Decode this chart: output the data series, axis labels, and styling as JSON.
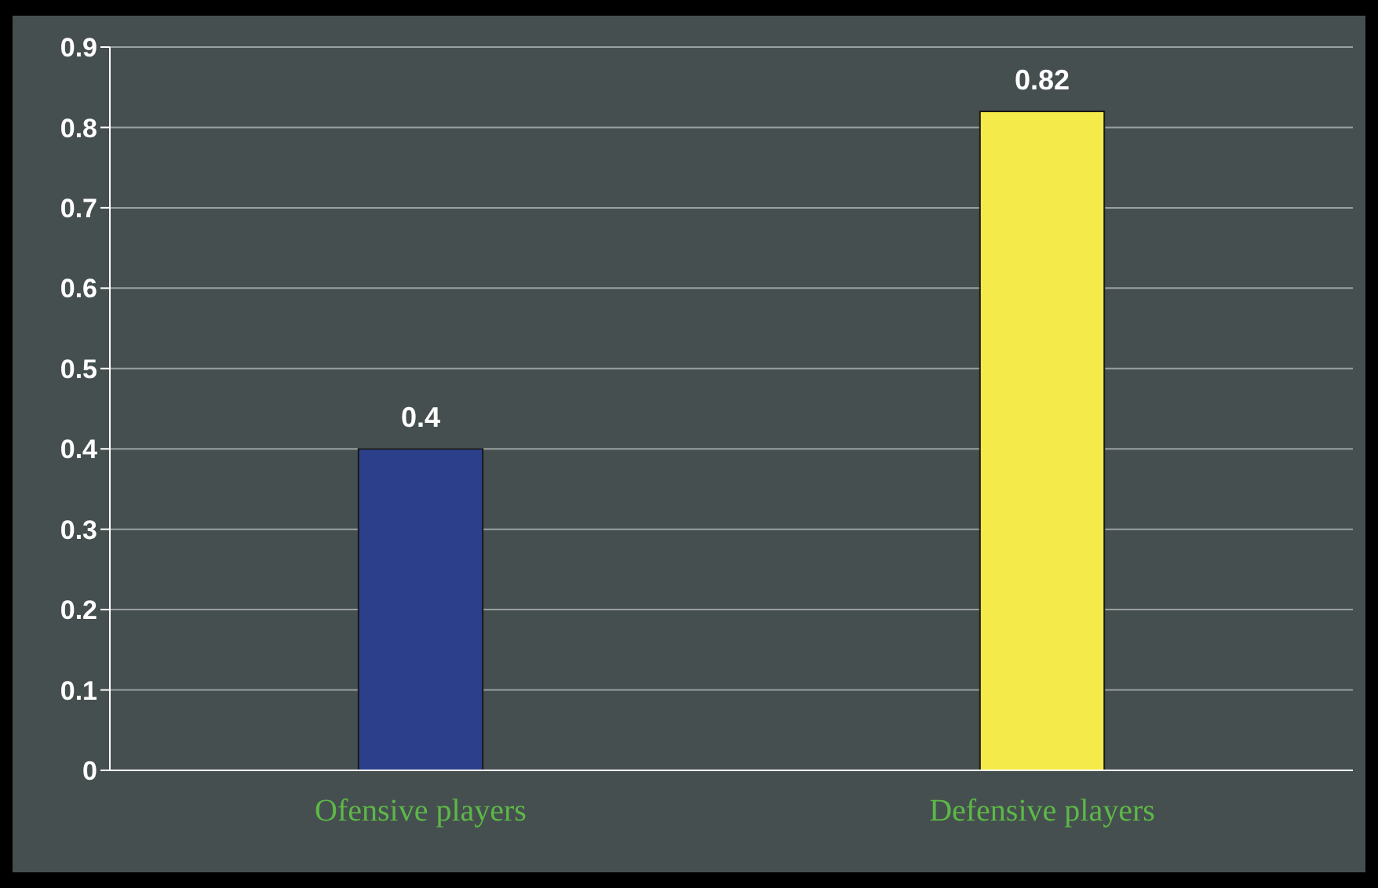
{
  "chart_data": {
    "type": "bar",
    "categories": [
      "Ofensive players",
      "Defensive players"
    ],
    "values": [
      0.4,
      0.82
    ],
    "colors": [
      "#2b3f8a",
      "#f4ea4a"
    ],
    "ylim": [
      0,
      0.9
    ],
    "yticks": [
      0,
      0.1,
      0.2,
      0.3,
      0.4,
      0.5,
      0.6,
      0.7,
      0.8,
      0.9
    ],
    "grid": "y",
    "data_labels": true,
    "legend": false
  }
}
